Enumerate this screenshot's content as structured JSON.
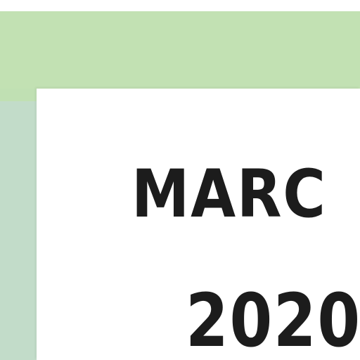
{
  "colors": {
    "top_band": "#c2e1b3",
    "side_band": "#c2dcc9",
    "card": "#ffffff",
    "text": "#1c1c1c"
  },
  "card": {
    "month": "MARC",
    "year": "2020"
  }
}
